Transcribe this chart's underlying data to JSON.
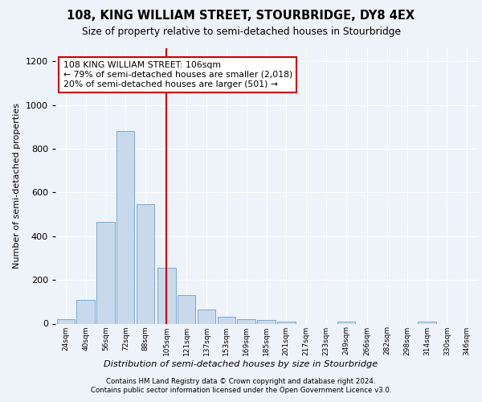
{
  "title1": "108, KING WILLIAM STREET, STOURBRIDGE, DY8 4EX",
  "title2": "Size of property relative to semi-detached houses in Stourbridge",
  "xlabel": "Distribution of semi-detached houses by size in Stourbridge",
  "ylabel": "Number of semi-detached properties",
  "footnote1": "Contains HM Land Registry data © Crown copyright and database right 2024.",
  "footnote2": "Contains public sector information licensed under the Open Government Licence v3.0.",
  "bar_color": "#c9d9ec",
  "bar_edge_color": "#7aaad0",
  "vline_color": "#cc0000",
  "vline_x": 105,
  "annotation_text": "108 KING WILLIAM STREET: 106sqm\n← 79% of semi-detached houses are smaller (2,018)\n20% of semi-detached houses are larger (501) →",
  "bin_centers": [
    24,
    40,
    56,
    72,
    88,
    105,
    121,
    137,
    153,
    169,
    185,
    201,
    217,
    233,
    249,
    266,
    282,
    298,
    314,
    330,
    346
  ],
  "counts": [
    20,
    110,
    465,
    880,
    545,
    255,
    130,
    65,
    30,
    20,
    15,
    10,
    0,
    0,
    10,
    0,
    0,
    0,
    10,
    0,
    0
  ],
  "ylim": [
    0,
    1260
  ],
  "yticks": [
    0,
    200,
    400,
    600,
    800,
    1000,
    1200
  ],
  "background_color": "#eef2f9",
  "grid_color": "#ffffff"
}
